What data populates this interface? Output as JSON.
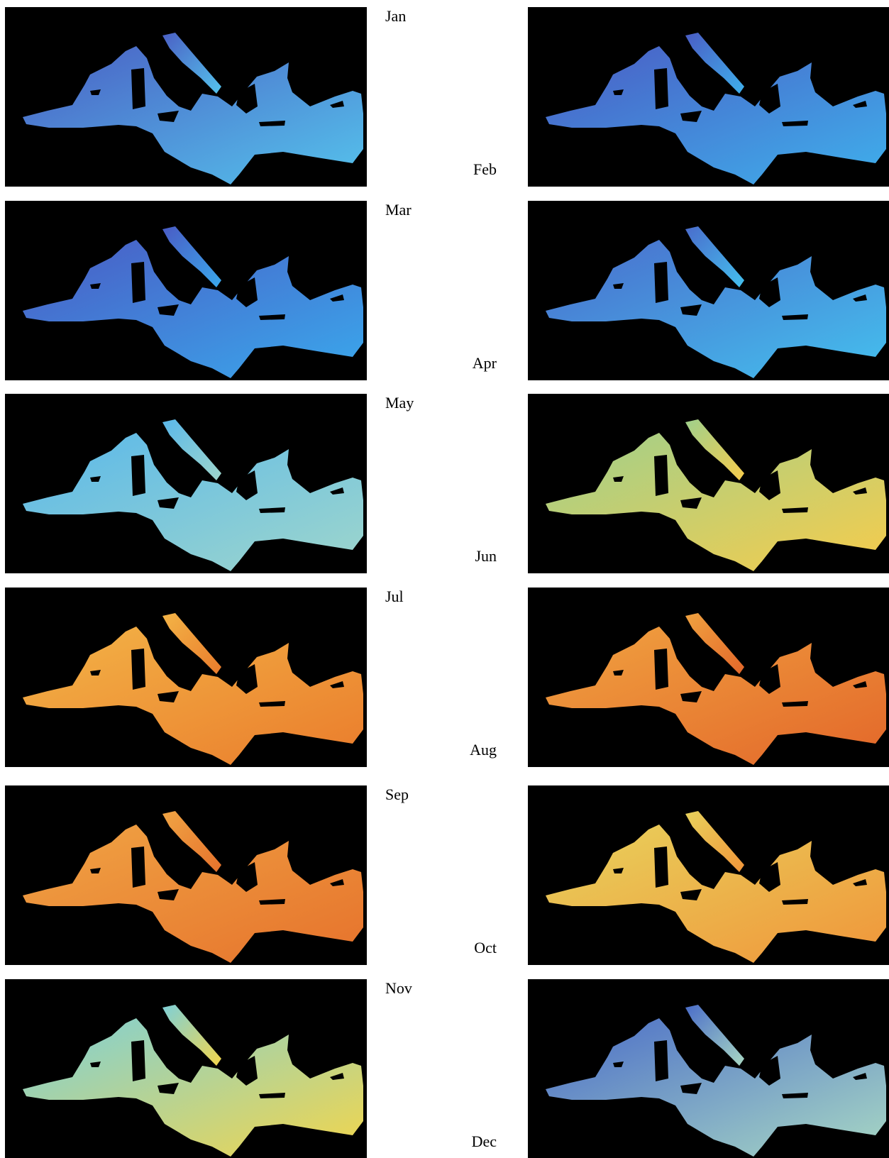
{
  "panels": [
    {
      "label": "Jan",
      "colors": [
        "#4a5fc4",
        "#55c3ec"
      ]
    },
    {
      "label": "Feb",
      "colors": [
        "#4a5cc4",
        "#3fb0ec"
      ]
    },
    {
      "label": "Mar",
      "colors": [
        "#4a5bc4",
        "#3aa8ec"
      ]
    },
    {
      "label": "Apr",
      "colors": [
        "#4a6ccc",
        "#44c0ee"
      ]
    },
    {
      "label": "May",
      "colors": [
        "#5ab8ea",
        "#9ed6cc"
      ]
    },
    {
      "label": "Jun",
      "colors": [
        "#9fd08c",
        "#f6cc4c"
      ]
    },
    {
      "label": "Jul",
      "colors": [
        "#f3b447",
        "#ea7c2c"
      ]
    },
    {
      "label": "Aug",
      "colors": [
        "#f0a240",
        "#e3672a"
      ]
    },
    {
      "label": "Sep",
      "colors": [
        "#f0a444",
        "#e6722c"
      ]
    },
    {
      "label": "Oct",
      "colors": [
        "#e8d25c",
        "#f0953a"
      ]
    },
    {
      "label": "Nov",
      "colors": [
        "#7ed0d8",
        "#f2d64c"
      ]
    },
    {
      "label": "Dec",
      "colors": [
        "#4a6cc8",
        "#a8d8c4"
      ]
    }
  ]
}
